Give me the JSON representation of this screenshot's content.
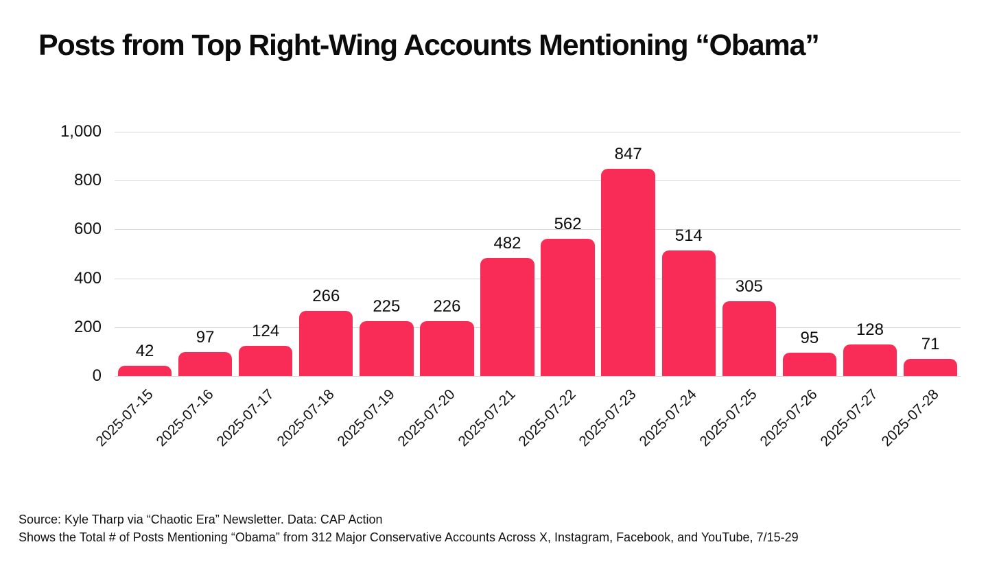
{
  "title": "Posts from Top Right-Wing Accounts Mentioning “Obama”",
  "chart_data": {
    "type": "bar",
    "title": "Posts from Top Right-Wing Accounts Mentioning “Obama”",
    "categories": [
      "2025-07-15",
      "2025-07-16",
      "2025-07-17",
      "2025-07-18",
      "2025-07-19",
      "2025-07-20",
      "2025-07-21",
      "2025-07-22",
      "2025-07-23",
      "2025-07-24",
      "2025-07-25",
      "2025-07-26",
      "2025-07-27",
      "2025-07-28"
    ],
    "values": [
      42,
      97,
      124,
      266,
      225,
      226,
      482,
      562,
      847,
      514,
      305,
      95,
      128,
      71
    ],
    "xlabel": "",
    "ylabel": "",
    "ylim": [
      0,
      1000
    ],
    "yticks": [
      0,
      200,
      400,
      600,
      800,
      1000
    ],
    "ytick_labels": [
      "0",
      "200",
      "400",
      "600",
      "800",
      "1,000"
    ],
    "grid": true,
    "legend": false,
    "bar_color": "#F92C57",
    "grid_color": "#D6D6D6",
    "text_color": "#111111"
  },
  "footer": {
    "line1": "Source: Kyle Tharp via “Chaotic Era” Newsletter. Data: CAP Action",
    "line2": "Shows the Total # of Posts Mentioning “Obama” from 312 Major Conservative Accounts Across X, Instagram, Facebook, and YouTube, 7/15-29"
  }
}
